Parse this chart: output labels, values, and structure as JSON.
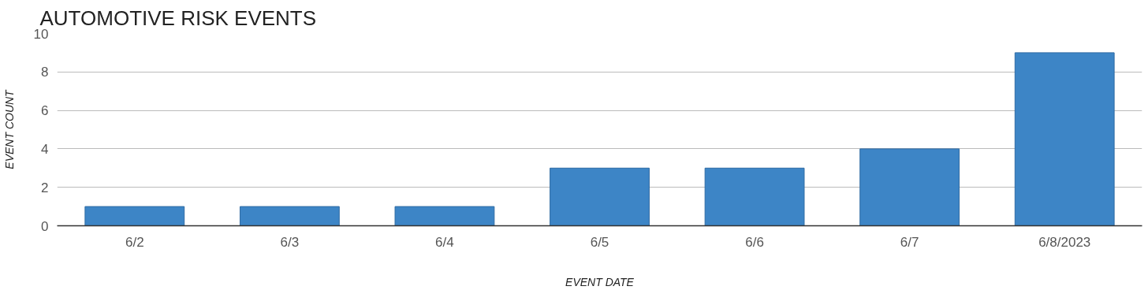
{
  "chart_data": {
    "type": "bar",
    "title": "AUTOMOTIVE RISK EVENTS",
    "xlabel": "EVENT DATE",
    "ylabel": "EVENT COUNT",
    "categories": [
      "6/2",
      "6/3",
      "6/4",
      "6/5",
      "6/6",
      "6/7",
      "6/8/2023"
    ],
    "values": [
      1,
      1,
      1,
      3,
      3,
      4,
      9
    ],
    "color": "#3d85c6",
    "ylim": [
      0,
      10
    ],
    "yticks": [
      0,
      2,
      4,
      6,
      8,
      10
    ],
    "grid": "y"
  }
}
